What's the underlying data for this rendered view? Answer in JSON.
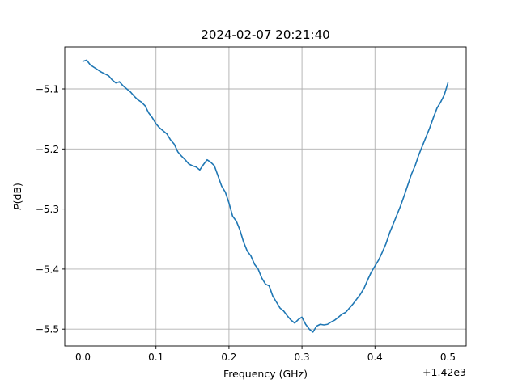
{
  "chart_data": {
    "type": "line",
    "title": "2024-02-07 20:21:40",
    "xlabel": "Frequency (GHz)",
    "ylabel_italic": "P",
    "ylabel_rest": "(dB)",
    "x_offset_label": "+1.42e3",
    "xlim": [
      -0.025,
      0.525
    ],
    "ylim": [
      -5.528,
      -5.03
    ],
    "x_ticks": [
      0.0,
      0.1,
      0.2,
      0.3,
      0.4,
      0.5
    ],
    "x_tick_labels": [
      "0.0",
      "0.1",
      "0.2",
      "0.3",
      "0.4",
      "0.5"
    ],
    "y_ticks": [
      -5.1,
      -5.2,
      -5.3,
      -5.4,
      -5.5
    ],
    "y_tick_labels": [
      "−5.1",
      "−5.2",
      "−5.3",
      "−5.4",
      "−5.5"
    ],
    "grid": true,
    "color": "#1f77b4",
    "series": [
      {
        "x": [
          0.0,
          0.005,
          0.01,
          0.015,
          0.02,
          0.025,
          0.03,
          0.035,
          0.04,
          0.045,
          0.05,
          0.055,
          0.06,
          0.065,
          0.07,
          0.075,
          0.08,
          0.085,
          0.09,
          0.095,
          0.1,
          0.105,
          0.11,
          0.115,
          0.12,
          0.125,
          0.13,
          0.135,
          0.14,
          0.145,
          0.15,
          0.155,
          0.16,
          0.165,
          0.17,
          0.175,
          0.18,
          0.185,
          0.19,
          0.195,
          0.2,
          0.205,
          0.21,
          0.215,
          0.22,
          0.225,
          0.23,
          0.235,
          0.24,
          0.245,
          0.25,
          0.255,
          0.26,
          0.265,
          0.27,
          0.275,
          0.28,
          0.285,
          0.29,
          0.295,
          0.3,
          0.305,
          0.31,
          0.315,
          0.32,
          0.325,
          0.33,
          0.335,
          0.34,
          0.345,
          0.35,
          0.355,
          0.36,
          0.365,
          0.37,
          0.375,
          0.38,
          0.385,
          0.39,
          0.395,
          0.4,
          0.405,
          0.41,
          0.415,
          0.42,
          0.425,
          0.43,
          0.435,
          0.44,
          0.445,
          0.45,
          0.455,
          0.46,
          0.465,
          0.47,
          0.475,
          0.48,
          0.485,
          0.49,
          0.495,
          0.5
        ],
        "y": [
          -5.054,
          -5.052,
          -5.06,
          -5.064,
          -5.068,
          -5.072,
          -5.075,
          -5.078,
          -5.085,
          -5.09,
          -5.088,
          -5.095,
          -5.1,
          -5.105,
          -5.112,
          -5.118,
          -5.122,
          -5.128,
          -5.14,
          -5.148,
          -5.158,
          -5.165,
          -5.17,
          -5.175,
          -5.185,
          -5.192,
          -5.205,
          -5.212,
          -5.218,
          -5.225,
          -5.228,
          -5.23,
          -5.235,
          -5.226,
          -5.218,
          -5.222,
          -5.228,
          -5.245,
          -5.262,
          -5.272,
          -5.29,
          -5.312,
          -5.32,
          -5.335,
          -5.355,
          -5.37,
          -5.378,
          -5.392,
          -5.4,
          -5.415,
          -5.425,
          -5.428,
          -5.445,
          -5.455,
          -5.465,
          -5.47,
          -5.478,
          -5.485,
          -5.49,
          -5.484,
          -5.48,
          -5.492,
          -5.5,
          -5.505,
          -5.495,
          -5.492,
          -5.493,
          -5.492,
          -5.488,
          -5.485,
          -5.48,
          -5.475,
          -5.472,
          -5.465,
          -5.458,
          -5.45,
          -5.442,
          -5.432,
          -5.418,
          -5.405,
          -5.395,
          -5.385,
          -5.372,
          -5.358,
          -5.34,
          -5.325,
          -5.31,
          -5.295,
          -5.278,
          -5.26,
          -5.242,
          -5.228,
          -5.21,
          -5.195,
          -5.18,
          -5.165,
          -5.148,
          -5.132,
          -5.122,
          -5.11,
          -5.09
        ]
      }
    ]
  }
}
